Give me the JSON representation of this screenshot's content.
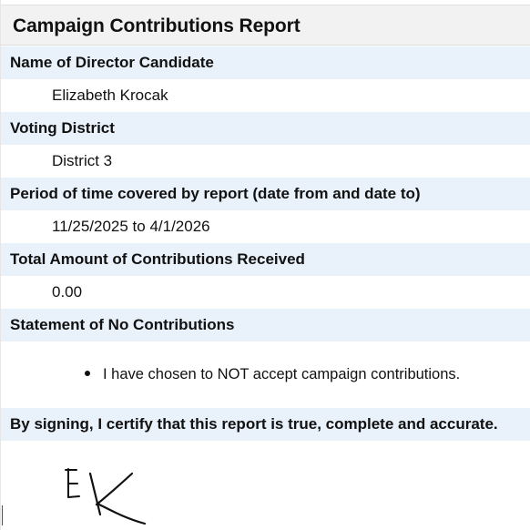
{
  "report": {
    "title": "Campaign Contributions Report"
  },
  "fields": [
    {
      "label": "Name of Director Candidate",
      "value": "Elizabeth Krocak"
    },
    {
      "label": "Voting District",
      "value": "District 3"
    },
    {
      "label": "Period of time covered by report (date from and date to)",
      "value": "11/25/2025 to 4/1/2026"
    },
    {
      "label": "Total Amount of Contributions Received",
      "value": "0.00"
    }
  ],
  "statement": {
    "label": "Statement of No Contributions",
    "items": [
      "I have chosen to NOT accept campaign contributions."
    ]
  },
  "certification": {
    "label": "By signing, I certify that this report is true, complete and accurate.",
    "signature": "EK"
  }
}
